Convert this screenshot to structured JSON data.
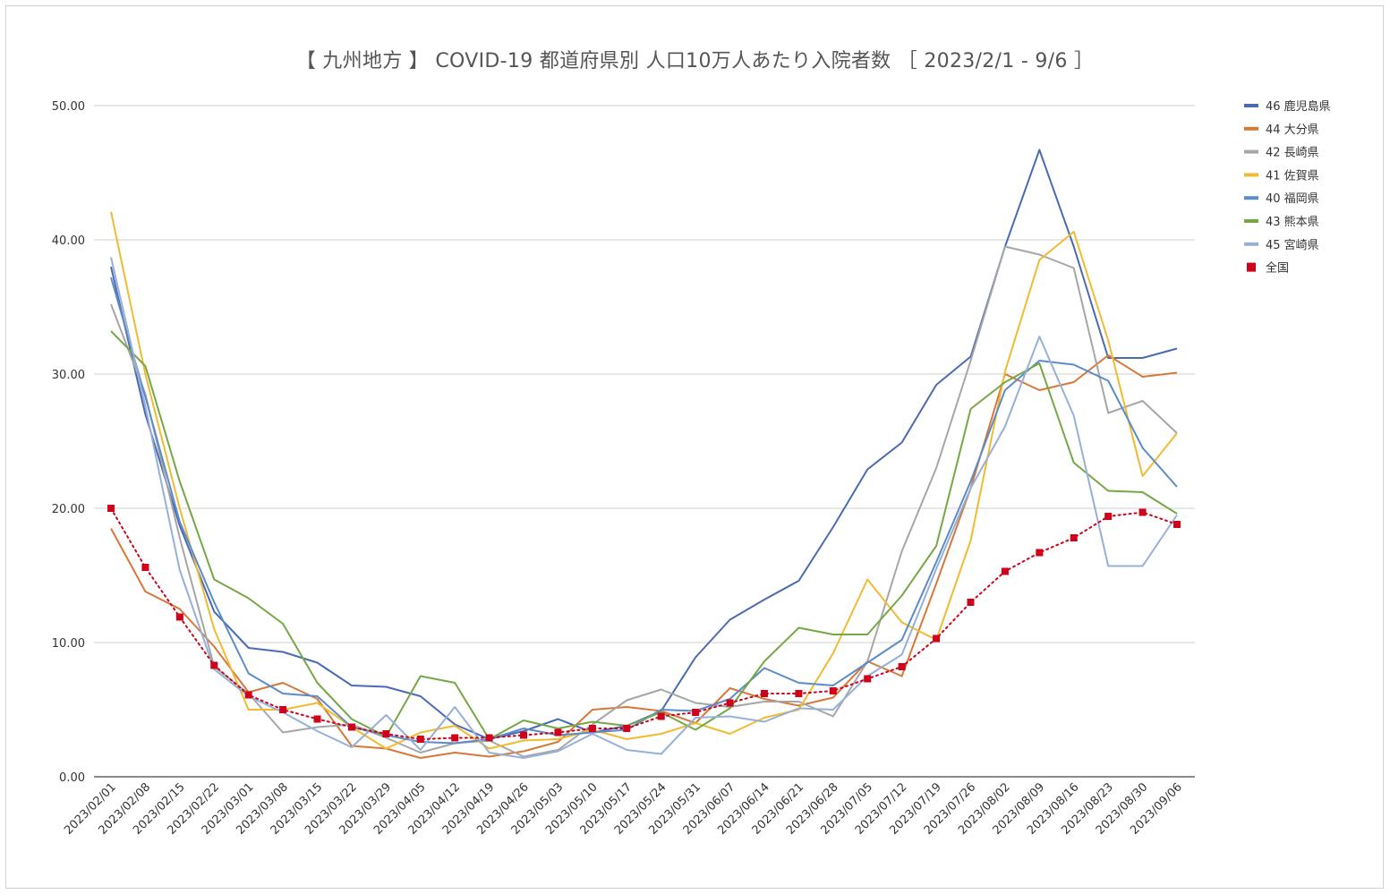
{
  "chart_data": {
    "type": "line",
    "title": "【 九州地方 】 COVID-19 都道府県別 人口10万人あたり入院者数 ［ 2023/2/1 - 9/6 ］",
    "xlabel": "",
    "ylabel": "",
    "ylim": [
      0,
      50
    ],
    "yticks": [
      "0.00",
      "10.00",
      "20.00",
      "30.00",
      "40.00",
      "50.00"
    ],
    "grid": true,
    "legend_position": "right",
    "categories": [
      "2023/02/01",
      "2023/02/08",
      "2023/02/15",
      "2023/02/22",
      "2023/03/01",
      "2023/03/08",
      "2023/03/15",
      "2023/03/22",
      "2023/03/29",
      "2023/04/05",
      "2023/04/12",
      "2023/04/19",
      "2023/04/26",
      "2023/05/03",
      "2023/05/10",
      "2023/05/17",
      "2023/05/24",
      "2023/05/31",
      "2023/06/07",
      "2023/06/14",
      "2023/06/21",
      "2023/06/28",
      "2023/07/05",
      "2023/07/12",
      "2023/07/19",
      "2023/07/26",
      "2023/08/02",
      "2023/08/09",
      "2023/08/16",
      "2023/08/23",
      "2023/08/30",
      "2023/09/06"
    ],
    "series": [
      {
        "name": "46 鹿児島県",
        "color": "#4b6ab4",
        "style": "line",
        "values": [
          38.0,
          27.0,
          18.7,
          12.3,
          9.6,
          9.3,
          8.5,
          6.8,
          6.7,
          6.0,
          3.9,
          2.8,
          3.4,
          4.3,
          3.3,
          3.8,
          4.9,
          8.9,
          11.7,
          13.2,
          14.6,
          18.6,
          22.9,
          24.9,
          29.2,
          31.3,
          39.5,
          46.7,
          39.5,
          31.2,
          31.2,
          31.9
        ]
      },
      {
        "name": "44 大分県",
        "color": "#d4793a",
        "style": "line",
        "values": [
          18.5,
          13.8,
          12.5,
          9.7,
          6.3,
          7.0,
          5.8,
          2.3,
          2.1,
          1.4,
          1.8,
          1.5,
          1.9,
          2.6,
          5.0,
          5.2,
          4.9,
          4.0,
          6.6,
          5.8,
          5.3,
          5.9,
          8.6,
          7.5,
          14.4,
          21.5,
          30.0,
          28.8,
          29.4,
          31.4,
          29.8,
          30.1
        ]
      },
      {
        "name": "42 長崎県",
        "color": "#a6a6a6",
        "style": "line",
        "values": [
          35.2,
          28.5,
          17.8,
          8.2,
          6.2,
          3.3,
          3.7,
          3.9,
          2.9,
          1.8,
          2.5,
          2.7,
          1.5,
          2.0,
          3.9,
          5.7,
          6.5,
          5.5,
          5.2,
          5.6,
          5.6,
          4.5,
          8.6,
          16.8,
          23.0,
          31.0,
          39.5,
          38.9,
          37.9,
          27.1,
          28.0,
          25.6
        ]
      },
      {
        "name": "41 佐賀県",
        "color": "#f0bb30",
        "style": "line",
        "values": [
          42.1,
          30.0,
          20.0,
          11.0,
          5.0,
          5.0,
          5.5,
          3.7,
          2.1,
          3.3,
          3.8,
          2.1,
          2.7,
          2.8,
          3.5,
          2.8,
          3.2,
          4.0,
          3.2,
          4.4,
          5.0,
          9.2,
          14.7,
          11.5,
          10.2,
          17.6,
          30.2,
          38.5,
          40.6,
          32.5,
          22.4,
          25.6
        ]
      },
      {
        "name": "40 福岡県",
        "color": "#5b8bc9",
        "style": "line",
        "values": [
          37.2,
          28.3,
          19.0,
          13.0,
          7.7,
          6.2,
          6.0,
          3.7,
          3.1,
          2.6,
          2.5,
          2.8,
          3.6,
          3.1,
          3.3,
          3.5,
          5.0,
          4.9,
          5.8,
          8.1,
          7.0,
          6.8,
          8.5,
          10.2,
          16.0,
          22.0,
          28.8,
          31.0,
          30.7,
          29.5,
          24.5,
          21.6
        ]
      },
      {
        "name": "43 熊本県",
        "color": "#75a845",
        "style": "line",
        "values": [
          33.2,
          30.6,
          22.0,
          14.7,
          13.3,
          11.4,
          7.0,
          4.3,
          3.0,
          7.5,
          7.0,
          2.8,
          4.2,
          3.6,
          4.1,
          3.8,
          4.8,
          3.5,
          5.1,
          8.6,
          11.1,
          10.6,
          10.6,
          13.5,
          17.2,
          27.4,
          29.4,
          30.8,
          23.4,
          21.3,
          21.2,
          19.6
        ]
      },
      {
        "name": "45 宮崎県",
        "color": "#97b0d8",
        "style": "line",
        "values": [
          38.7,
          27.6,
          15.4,
          8.0,
          6.0,
          4.8,
          3.4,
          2.2,
          4.6,
          2.0,
          5.2,
          1.8,
          1.4,
          1.9,
          3.2,
          2.0,
          1.7,
          4.4,
          4.5,
          4.1,
          5.1,
          5.0,
          7.5,
          9.1,
          15.5,
          21.5,
          26.1,
          32.8,
          26.9,
          15.7,
          15.7,
          19.5
        ]
      },
      {
        "name": "全国",
        "color": "#d0021b",
        "style": "dotted-markers",
        "values": [
          20.0,
          15.6,
          11.9,
          8.3,
          6.1,
          5.0,
          4.3,
          3.7,
          3.2,
          2.8,
          2.9,
          2.9,
          3.1,
          3.3,
          3.6,
          3.6,
          4.5,
          4.8,
          5.5,
          6.2,
          6.2,
          6.4,
          7.3,
          8.2,
          10.3,
          13.0,
          15.3,
          16.7,
          17.8,
          19.4,
          19.7,
          18.8
        ]
      }
    ]
  }
}
